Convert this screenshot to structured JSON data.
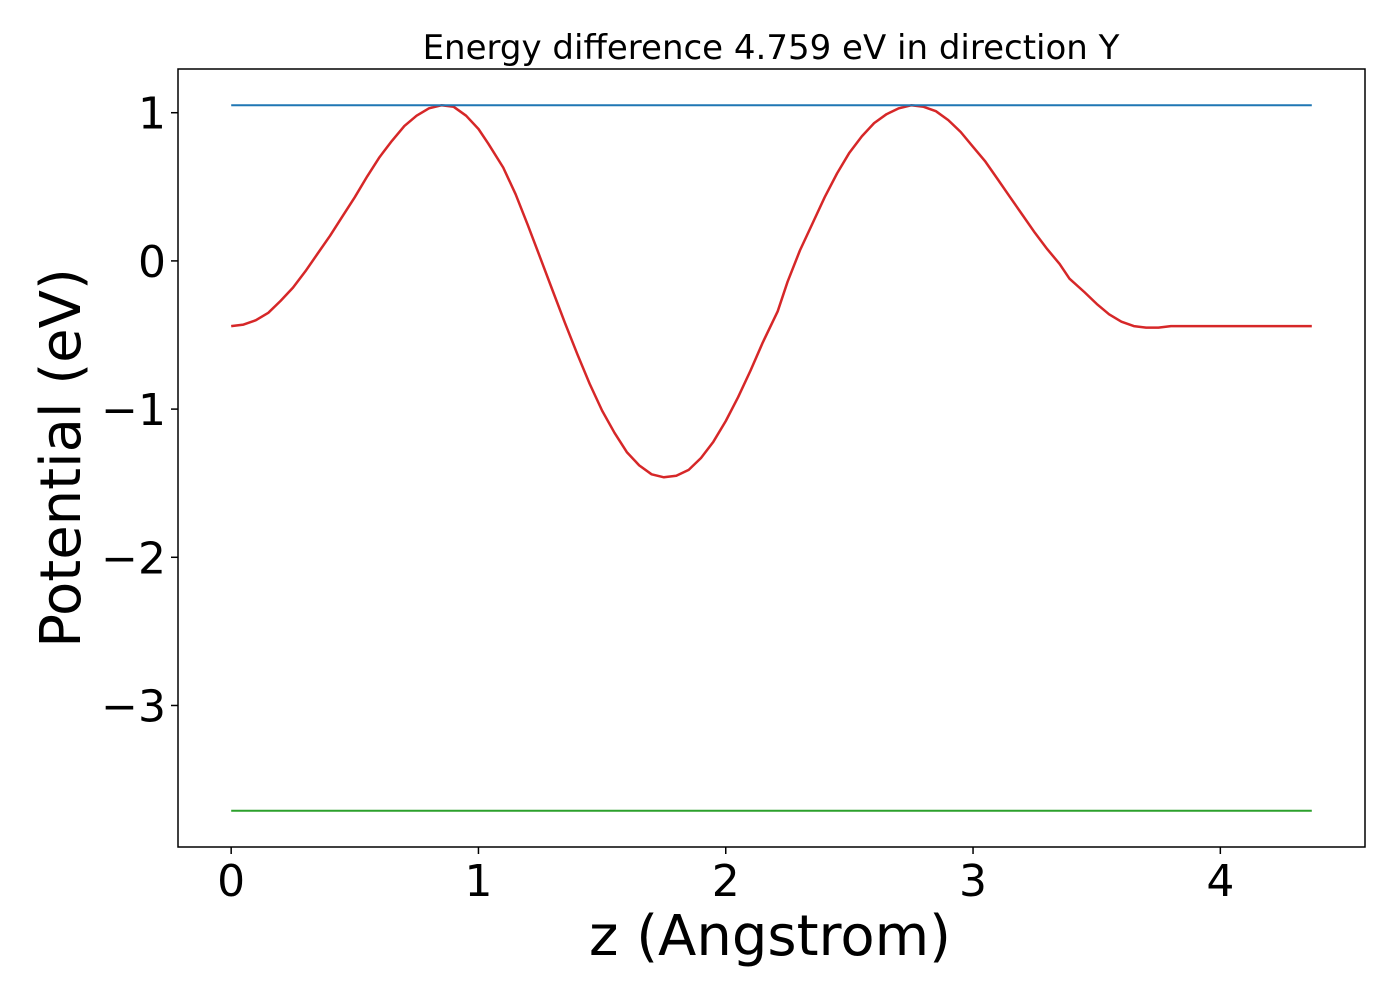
{
  "chart_data": {
    "type": "line",
    "title": "Energy difference 4.759 eV in direction Y",
    "xlabel": "z (Angstrom)",
    "ylabel": "Potential (eV)",
    "xlim": [
      -0.215,
      4.585
    ],
    "ylim": [
      -3.955,
      1.295
    ],
    "xticks": [
      0,
      1,
      2,
      3,
      4
    ],
    "xtick_labels": [
      "0",
      "1",
      "2",
      "3",
      "4"
    ],
    "yticks": [
      1,
      0,
      -1,
      -2,
      -3
    ],
    "ytick_labels": [
      "1",
      "0",
      "−1",
      "−2",
      "−3"
    ],
    "grid": false,
    "series": [
      {
        "color": "#d62728",
        "x": [
          0.0,
          0.05,
          0.1,
          0.15,
          0.2,
          0.25,
          0.3,
          0.35,
          0.4,
          0.45,
          0.5,
          0.55,
          0.6,
          0.65,
          0.7,
          0.75,
          0.8,
          0.85,
          0.9,
          0.95,
          1.0,
          1.04,
          1.1,
          1.15,
          1.2,
          1.25,
          1.3,
          1.35,
          1.4,
          1.45,
          1.5,
          1.55,
          1.6,
          1.65,
          1.7,
          1.75,
          1.8,
          1.85,
          1.9,
          1.95,
          2.0,
          2.05,
          2.1,
          2.15,
          2.21,
          2.25,
          2.3,
          2.35,
          2.4,
          2.45,
          2.5,
          2.55,
          2.6,
          2.65,
          2.7,
          2.75,
          2.8,
          2.85,
          2.9,
          2.95,
          3.0,
          3.05,
          3.1,
          3.15,
          3.2,
          3.25,
          3.3,
          3.35,
          3.39,
          3.45,
          3.5,
          3.55,
          3.6,
          3.65,
          3.7,
          3.75,
          3.8,
          3.85,
          3.9,
          3.95,
          4.0,
          4.05,
          4.1,
          4.15,
          4.2,
          4.25,
          4.3,
          4.37
        ],
        "values": [
          -0.44,
          -0.43,
          -0.4,
          -0.35,
          -0.27,
          -0.18,
          -0.07,
          0.05,
          0.17,
          0.3,
          0.43,
          0.57,
          0.7,
          0.81,
          0.91,
          0.98,
          1.03,
          1.05,
          1.04,
          0.98,
          0.89,
          0.79,
          0.63,
          0.45,
          0.24,
          0.02,
          -0.2,
          -0.42,
          -0.63,
          -0.83,
          -1.01,
          -1.16,
          -1.29,
          -1.38,
          -1.44,
          -1.46,
          -1.45,
          -1.41,
          -1.33,
          -1.22,
          -1.08,
          -0.92,
          -0.74,
          -0.55,
          -0.34,
          -0.14,
          0.07,
          0.25,
          0.43,
          0.59,
          0.73,
          0.84,
          0.93,
          0.99,
          1.03,
          1.05,
          1.04,
          1.01,
          0.95,
          0.87,
          0.77,
          0.67,
          0.55,
          0.43,
          0.31,
          0.19,
          0.08,
          -0.02,
          -0.12,
          -0.21,
          -0.29,
          -0.36,
          -0.41,
          -0.44,
          -0.45,
          -0.45,
          -0.44,
          -0.44,
          -0.44,
          -0.44,
          -0.44,
          -0.44,
          -0.44,
          -0.44,
          -0.44,
          -0.44,
          -0.44,
          -0.44
        ]
      },
      {
        "color": "#1f77b4",
        "x": [
          0.0,
          4.37
        ],
        "values": [
          1.05,
          1.05
        ]
      },
      {
        "color": "#2ca02c",
        "x": [
          0.0,
          4.37
        ],
        "values": [
          -3.71,
          -3.71
        ]
      }
    ]
  }
}
